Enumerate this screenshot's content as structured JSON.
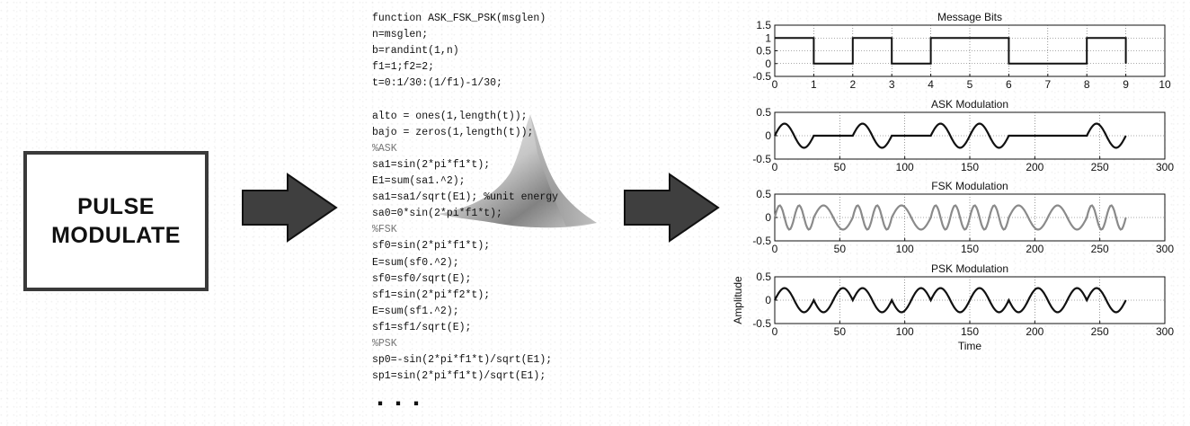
{
  "block": {
    "line1": "PULSE",
    "line2": "MODULATE"
  },
  "code": {
    "lines": [
      {
        "text": "function ASK_FSK_PSK(msglen)",
        "comment": false
      },
      {
        "text": "n=msglen;",
        "comment": false
      },
      {
        "text": "b=randint(1,n)",
        "comment": false
      },
      {
        "text": "f1=1;f2=2;",
        "comment": false
      },
      {
        "text": "t=0:1/30:(1/f1)-1/30;",
        "comment": false
      },
      {
        "text": "",
        "comment": false
      },
      {
        "text": "alto = ones(1,length(t));",
        "comment": false
      },
      {
        "text": "bajo = zeros(1,length(t));",
        "comment": false
      },
      {
        "text": "%ASK",
        "comment": true
      },
      {
        "text": "sa1=sin(2*pi*f1*t);",
        "comment": false
      },
      {
        "text": "E1=sum(sa1.^2);",
        "comment": false
      },
      {
        "text": "sa1=sa1/sqrt(E1); %unit energy",
        "comment": false
      },
      {
        "text": "sa0=0*sin(2*pi*f1*t);",
        "comment": false
      },
      {
        "text": "%FSK",
        "comment": true
      },
      {
        "text": "sf0=sin(2*pi*f1*t);",
        "comment": false
      },
      {
        "text": "E=sum(sf0.^2);",
        "comment": false
      },
      {
        "text": "sf0=sf0/sqrt(E);",
        "comment": false
      },
      {
        "text": "sf1=sin(2*pi*f2*t);",
        "comment": false
      },
      {
        "text": "E=sum(sf1.^2);",
        "comment": false
      },
      {
        "text": "sf1=sf1/sqrt(E);",
        "comment": false
      },
      {
        "text": "%PSK",
        "comment": true
      },
      {
        "text": "sp0=-sin(2*pi*f1*t)/sqrt(E1);",
        "comment": false
      },
      {
        "text": "sp1=sin(2*pi*f1*t)/sqrt(E1);",
        "comment": false
      }
    ],
    "ellipsis": "..."
  },
  "chart_data": [
    {
      "type": "line",
      "title": "Message Bits",
      "xlim": [
        0,
        10
      ],
      "ylim": [
        -0.5,
        1.5
      ],
      "xticks": [
        "0",
        "1",
        "2",
        "3",
        "4",
        "5",
        "6",
        "7",
        "8",
        "9",
        "10"
      ],
      "yticks": [
        "1.5",
        "1",
        "0.5",
        "0",
        "-0.5"
      ],
      "grid": true,
      "bits": [
        1,
        0,
        1,
        0,
        1,
        1,
        0,
        0,
        1
      ],
      "series": [
        {
          "x": [
            0,
            1,
            1,
            2,
            2,
            3,
            3,
            4,
            4,
            6,
            6,
            8,
            8,
            9,
            9
          ],
          "y": [
            1,
            1,
            0,
            0,
            1,
            1,
            0,
            0,
            1,
            1,
            0,
            0,
            1,
            1,
            0
          ]
        }
      ]
    },
    {
      "type": "line",
      "title": "ASK Modulation",
      "xlim": [
        0,
        300
      ],
      "ylim": [
        -0.5,
        0.5
      ],
      "xticks": [
        "0",
        "50",
        "100",
        "150",
        "200",
        "250",
        "300"
      ],
      "yticks": [
        "0.5",
        "0",
        "-0.5"
      ],
      "grid": true,
      "series": [
        {
          "formula": "bit=1: sin(2*pi*t)/sqrt(15); bit=0: 0",
          "samples_per_bit": 30
        }
      ]
    },
    {
      "type": "line",
      "title": "FSK Modulation",
      "xlim": [
        0,
        300
      ],
      "ylim": [
        -0.5,
        0.5
      ],
      "xticks": [
        "0",
        "50",
        "100",
        "150",
        "200",
        "250",
        "300"
      ],
      "yticks": [
        "0.5",
        "0",
        "-0.5"
      ],
      "grid": true,
      "series": [
        {
          "formula": "bit=1: sin(4*pi*t)/sqrt(15); bit=0: sin(2*pi*t)/sqrt(15)",
          "samples_per_bit": 30
        }
      ]
    },
    {
      "type": "line",
      "title": "PSK Modulation",
      "xlabel": "Time",
      "ylabel": "Amplitude",
      "xlim": [
        0,
        300
      ],
      "ylim": [
        -0.5,
        0.5
      ],
      "xticks": [
        "0",
        "50",
        "100",
        "150",
        "200",
        "250",
        "300"
      ],
      "yticks": [
        "0.5",
        "0",
        "-0.5"
      ],
      "grid": true,
      "series": [
        {
          "formula": "bit=1: sin(2*pi*t)/sqrt(15); bit=0: -sin(2*pi*t)/sqrt(15)",
          "samples_per_bit": 30
        }
      ]
    }
  ],
  "colors": {
    "ink": "#111111",
    "fsk_line": "#8a8a8a",
    "box_border": "#3a3a3a",
    "arrow_fill": "#3f3f3f"
  },
  "icons": {
    "arrow": "right-arrow-icon",
    "surface": "matlab-membrane-surface-icon"
  }
}
